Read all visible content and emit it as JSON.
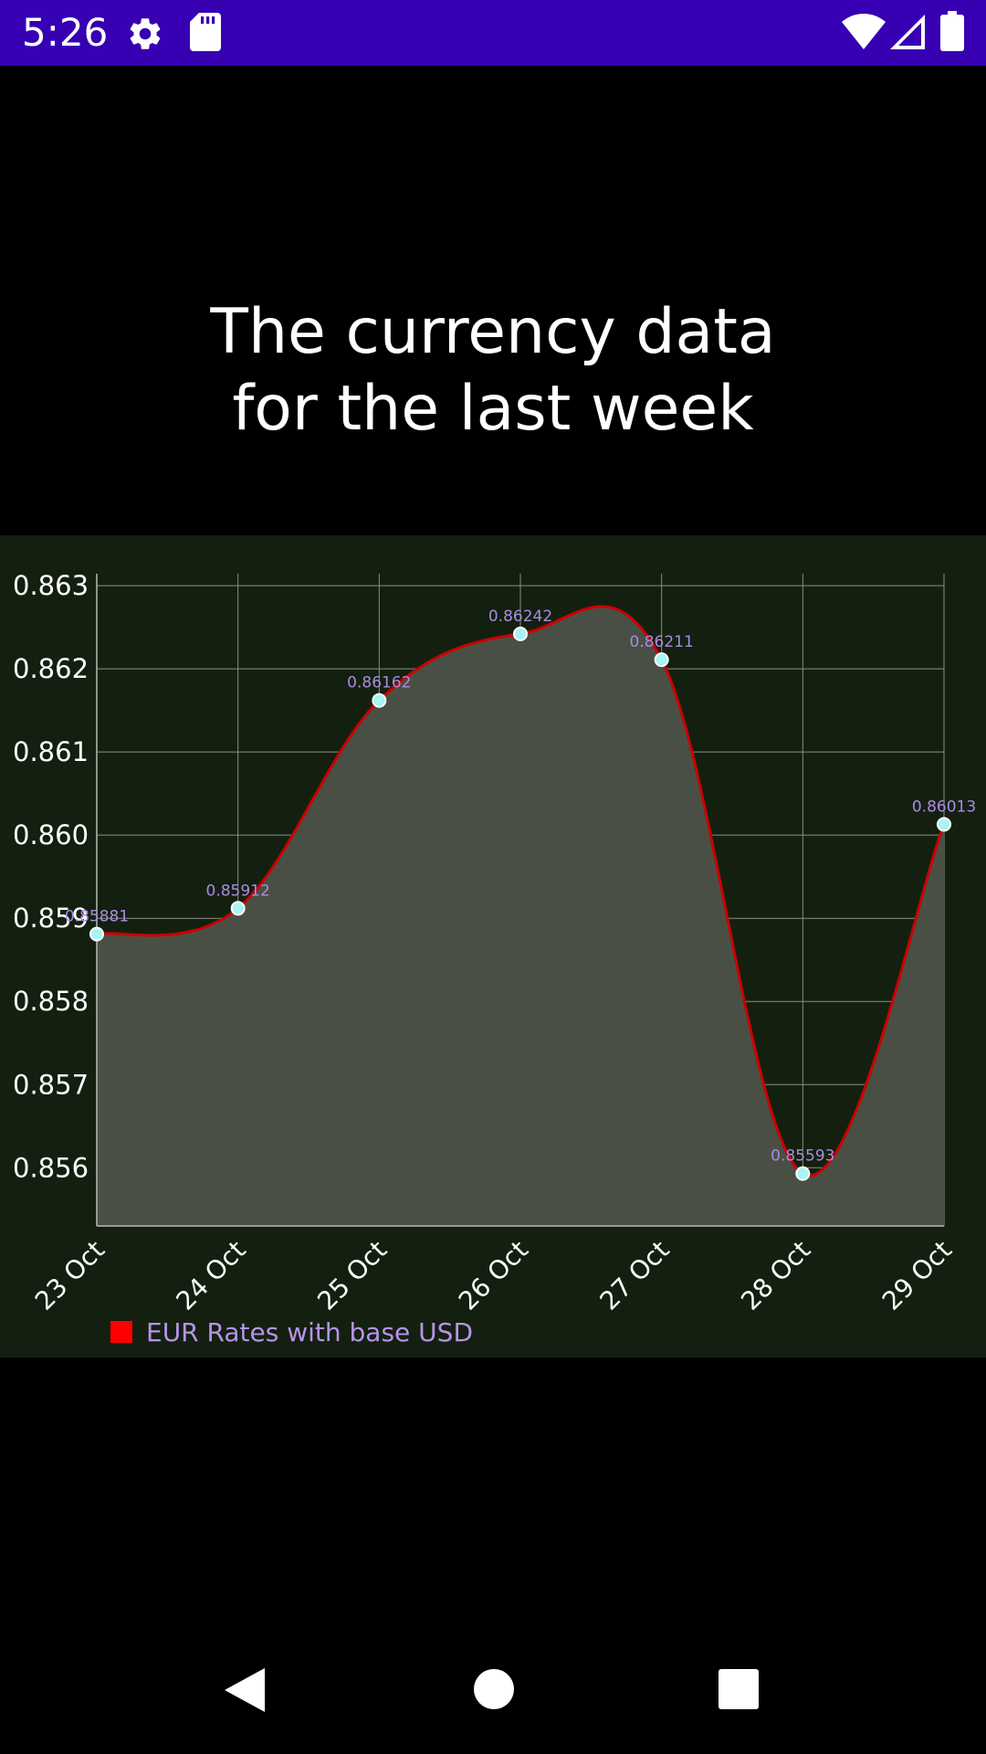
{
  "status_bar": {
    "time": "5:26",
    "left_icons": [
      "gear-icon",
      "sd-card-icon"
    ],
    "right_icons": [
      "wifi-icon",
      "cell-signal-icon",
      "battery-icon"
    ],
    "background": "#3700b3"
  },
  "headline": {
    "line1": "The currency data",
    "line2": "for the last week"
  },
  "chart_data": {
    "type": "area",
    "categories": [
      "23 Oct",
      "24 Oct",
      "25 Oct",
      "26 Oct",
      "27 Oct",
      "28 Oct",
      "29 Oct"
    ],
    "series": [
      {
        "name": "EUR Rates with base USD",
        "values": [
          0.85881,
          0.85912,
          0.86162,
          0.86242,
          0.86211,
          0.85593,
          0.86013
        ],
        "value_labels": [
          "0.85881",
          "0.85912",
          "0.86162",
          "0.86242",
          "0.86211",
          "0.85593",
          "0.86013"
        ],
        "line_color": "#cc0000",
        "fill_color": "#4a4f46",
        "point_color": "#a6f4f4",
        "label_color": "#a98be0"
      }
    ],
    "yticks": [
      "0.863",
      "0.862",
      "0.861",
      "0.860",
      "0.859",
      "0.858",
      "0.857",
      "0.856"
    ],
    "ytick_values": [
      0.863,
      0.862,
      0.861,
      0.86,
      0.859,
      0.858,
      0.857,
      0.856
    ],
    "ylim": [
      0.8553,
      0.8631
    ],
    "grid": true,
    "legend": {
      "position": "bottom-left",
      "swatch_color": "#ff0000",
      "text_color": "#b793e8"
    },
    "background": "#132010",
    "xlabel": "",
    "ylabel": ""
  },
  "nav_bar": {
    "buttons": [
      "back-icon",
      "home-icon",
      "recents-icon"
    ]
  }
}
